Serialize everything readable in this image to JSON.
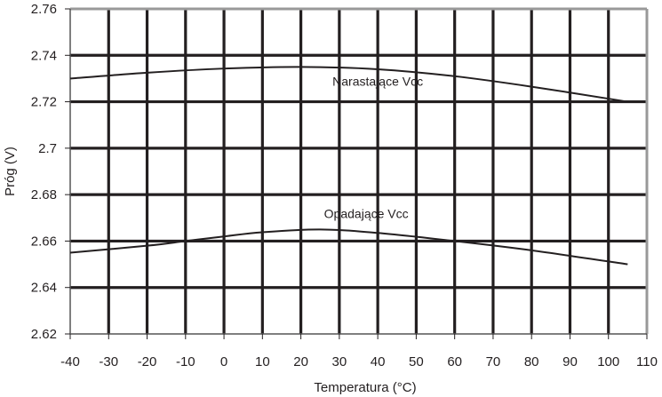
{
  "chart_data": {
    "type": "line",
    "title": "",
    "xlabel": "Temperatura (°C)",
    "ylabel": "Próg (V)",
    "xlim": [
      -40,
      110
    ],
    "ylim": [
      2.62,
      2.76
    ],
    "grid": true,
    "x_ticks": [
      -40,
      -30,
      -20,
      -10,
      0,
      10,
      20,
      30,
      40,
      50,
      60,
      70,
      80,
      90,
      100,
      110
    ],
    "x_tick_labels": [
      "-40",
      "-30",
      "-20",
      "-10",
      "0",
      "10",
      "20",
      "30",
      "40",
      "50",
      "60",
      "70",
      "80",
      "90",
      "100",
      "110"
    ],
    "y_ticks": [
      2.62,
      2.64,
      2.66,
      2.68,
      2.7,
      2.72,
      2.74,
      2.76
    ],
    "y_tick_labels": [
      "2.62",
      "2.64",
      "2.66",
      "2.68",
      "2.7",
      "2.72",
      "2.74",
      "2.76"
    ],
    "series": [
      {
        "name": "Narastające Vcc",
        "x": [
          -40,
          -20,
          0,
          20,
          40,
          60,
          80,
          105
        ],
        "values": [
          2.73,
          2.7325,
          2.7343,
          2.735,
          2.734,
          2.731,
          2.7265,
          2.72
        ]
      },
      {
        "name": "Opadające Vcc",
        "x": [
          -40,
          -20,
          -10,
          0,
          10,
          25,
          40,
          60,
          80,
          105
        ],
        "values": [
          2.655,
          2.658,
          2.66,
          2.662,
          2.6638,
          2.665,
          2.6635,
          2.66,
          2.656,
          2.65
        ]
      }
    ],
    "annotations": [
      {
        "text": "Narastające Vcc",
        "x": 40,
        "y": 2.727
      },
      {
        "text": "Opadające Vcc",
        "x": 37,
        "y": 2.67
      }
    ]
  },
  "colors": {
    "grid": "#231f20",
    "frame": "#999999",
    "line": "#231f20"
  }
}
